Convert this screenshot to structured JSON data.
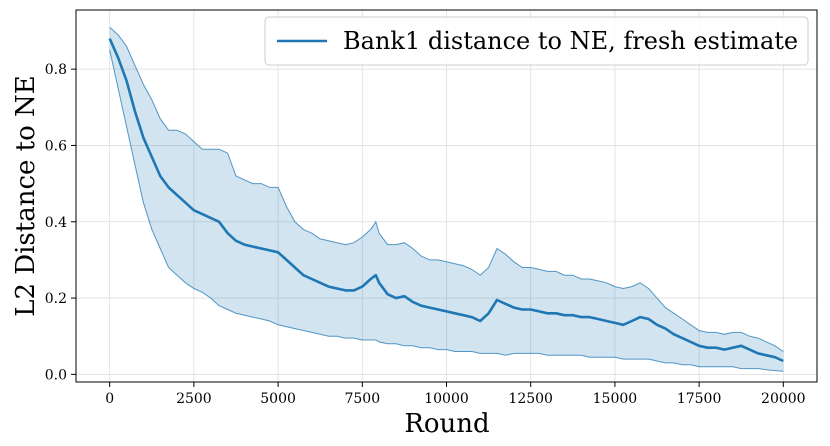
{
  "chart_data": {
    "type": "line",
    "title": "",
    "xlabel": "Round",
    "ylabel": "L2 Distance to NE",
    "xlim": [
      -1000,
      21000
    ],
    "ylim": [
      -0.02,
      0.955
    ],
    "xticks": [
      0,
      2500,
      5000,
      7500,
      10000,
      12500,
      15000,
      17500,
      20000
    ],
    "yticks": [
      0.0,
      0.2,
      0.4,
      0.6,
      0.8
    ],
    "xtick_labels": [
      "0",
      "2500",
      "5000",
      "7500",
      "10000",
      "12500",
      "15000",
      "17500",
      "20000"
    ],
    "ytick_labels": [
      "0.0",
      "0.2",
      "0.4",
      "0.6",
      "0.8"
    ],
    "grid": true,
    "legend": {
      "placement": "top-right"
    },
    "colors": {
      "line": "#1f77b4",
      "band_fill": "#1f77b4",
      "grid": "#dddddd"
    },
    "series": [
      {
        "name": "Bank1 distance to NE, fresh estimate",
        "x": [
          0,
          250,
          500,
          750,
          1000,
          1250,
          1500,
          1750,
          2000,
          2250,
          2500,
          2750,
          3000,
          3250,
          3500,
          3750,
          4000,
          4250,
          4500,
          4750,
          5000,
          5250,
          5500,
          5750,
          6000,
          6250,
          6500,
          6750,
          7000,
          7250,
          7500,
          7750,
          7900,
          8000,
          8250,
          8500,
          8750,
          9000,
          9250,
          9500,
          9750,
          10000,
          10250,
          10500,
          10750,
          11000,
          11250,
          11500,
          11750,
          12000,
          12250,
          12500,
          12750,
          13000,
          13250,
          13500,
          13750,
          14000,
          14250,
          14500,
          14750,
          15000,
          15250,
          15500,
          15750,
          16000,
          16250,
          16500,
          16750,
          17000,
          17250,
          17500,
          17750,
          18000,
          18250,
          18500,
          18750,
          19000,
          19250,
          19500,
          19750,
          20000
        ],
        "y": [
          0.88,
          0.83,
          0.77,
          0.69,
          0.62,
          0.57,
          0.52,
          0.49,
          0.47,
          0.45,
          0.43,
          0.42,
          0.41,
          0.4,
          0.37,
          0.35,
          0.34,
          0.335,
          0.33,
          0.325,
          0.32,
          0.3,
          0.28,
          0.26,
          0.25,
          0.24,
          0.23,
          0.225,
          0.22,
          0.22,
          0.23,
          0.25,
          0.26,
          0.24,
          0.21,
          0.2,
          0.205,
          0.19,
          0.18,
          0.175,
          0.17,
          0.165,
          0.16,
          0.155,
          0.15,
          0.14,
          0.16,
          0.195,
          0.185,
          0.175,
          0.17,
          0.17,
          0.165,
          0.16,
          0.16,
          0.155,
          0.155,
          0.15,
          0.15,
          0.145,
          0.14,
          0.135,
          0.13,
          0.14,
          0.15,
          0.145,
          0.13,
          0.12,
          0.105,
          0.095,
          0.085,
          0.075,
          0.07,
          0.07,
          0.065,
          0.07,
          0.075,
          0.065,
          0.055,
          0.05,
          0.045,
          0.035
        ],
        "upper": [
          0.91,
          0.89,
          0.86,
          0.81,
          0.76,
          0.72,
          0.67,
          0.64,
          0.64,
          0.63,
          0.61,
          0.59,
          0.59,
          0.59,
          0.58,
          0.52,
          0.51,
          0.5,
          0.5,
          0.49,
          0.49,
          0.44,
          0.4,
          0.38,
          0.37,
          0.355,
          0.35,
          0.345,
          0.34,
          0.345,
          0.36,
          0.38,
          0.4,
          0.37,
          0.34,
          0.34,
          0.345,
          0.33,
          0.31,
          0.3,
          0.3,
          0.295,
          0.29,
          0.285,
          0.275,
          0.26,
          0.28,
          0.33,
          0.315,
          0.295,
          0.28,
          0.28,
          0.275,
          0.27,
          0.27,
          0.26,
          0.26,
          0.25,
          0.25,
          0.245,
          0.24,
          0.23,
          0.225,
          0.23,
          0.24,
          0.225,
          0.2,
          0.175,
          0.16,
          0.145,
          0.13,
          0.115,
          0.11,
          0.11,
          0.105,
          0.11,
          0.11,
          0.1,
          0.095,
          0.085,
          0.075,
          0.06
        ],
        "lower": [
          0.85,
          0.75,
          0.65,
          0.55,
          0.45,
          0.38,
          0.33,
          0.28,
          0.26,
          0.24,
          0.225,
          0.215,
          0.2,
          0.18,
          0.17,
          0.16,
          0.155,
          0.15,
          0.145,
          0.14,
          0.13,
          0.125,
          0.12,
          0.115,
          0.11,
          0.105,
          0.1,
          0.1,
          0.095,
          0.095,
          0.09,
          0.09,
          0.09,
          0.085,
          0.08,
          0.08,
          0.075,
          0.075,
          0.07,
          0.07,
          0.065,
          0.065,
          0.06,
          0.06,
          0.06,
          0.055,
          0.055,
          0.055,
          0.05,
          0.055,
          0.055,
          0.055,
          0.055,
          0.05,
          0.05,
          0.05,
          0.05,
          0.05,
          0.045,
          0.045,
          0.045,
          0.045,
          0.04,
          0.04,
          0.04,
          0.04,
          0.035,
          0.03,
          0.03,
          0.025,
          0.025,
          0.02,
          0.02,
          0.02,
          0.02,
          0.02,
          0.015,
          0.015,
          0.015,
          0.012,
          0.01,
          0.008
        ]
      }
    ]
  }
}
